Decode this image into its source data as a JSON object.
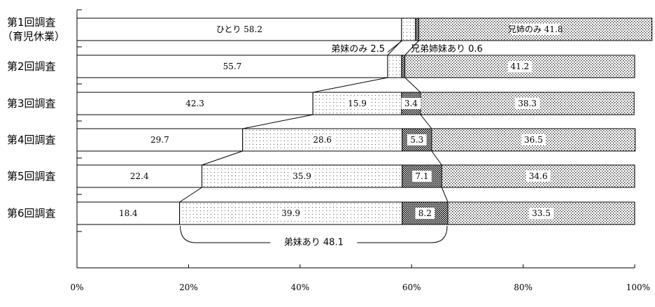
{
  "chart_data": {
    "type": "bar",
    "stacked": true,
    "orientation": "horizontal",
    "categories": [
      [
        "第1回調査",
        "（育児休業）"
      ],
      [
        "第2回調査"
      ],
      [
        "第3回調査"
      ],
      [
        "第4回調査"
      ],
      [
        "第5回調査"
      ],
      [
        "第6回調査"
      ]
    ],
    "series": [
      {
        "name": "ひとり",
        "values": [
          58.2,
          55.7,
          42.3,
          29.7,
          22.4,
          18.4
        ],
        "labels": [
          "ひとり 58.2",
          "55.7",
          "42.3",
          "29.7",
          "22.4",
          "18.4"
        ],
        "pattern": "white"
      },
      {
        "name": "弟妹のみ",
        "values": [
          2.5,
          2.5,
          15.9,
          28.6,
          35.9,
          39.9
        ],
        "labels": [
          "",
          "",
          "15.9",
          "28.6",
          "35.9",
          "39.9"
        ],
        "pattern": "light-dots"
      },
      {
        "name": "兄弟姉妹あり",
        "values": [
          0.6,
          0.6,
          3.4,
          5.3,
          7.1,
          8.2
        ],
        "labels": [
          "",
          "",
          "3.4",
          "5.3",
          "7.1",
          "8.2"
        ],
        "pattern": "dense-dots"
      },
      {
        "name": "兄姉のみ",
        "values": [
          41.8,
          41.2,
          38.3,
          36.5,
          34.6,
          33.5
        ],
        "labels": [
          "兄姉のみ 41.8",
          "41.2",
          "38.3",
          "36.5",
          "34.6",
          "33.5"
        ],
        "pattern": "medium-dots"
      }
    ],
    "annotations": {
      "younger_only": "弟妹のみ 2.5",
      "both": "兄弟姉妹あり 0.6",
      "has_younger": "弟妹あり 48.1"
    },
    "x_ticks": [
      "0%",
      "20%",
      "40%",
      "60%",
      "80%",
      "100%"
    ],
    "xlim": [
      0,
      100
    ],
    "grid": false,
    "colors": {
      "fill_white": "#ffffff",
      "dots": "#000000",
      "axis": "#000000"
    }
  }
}
